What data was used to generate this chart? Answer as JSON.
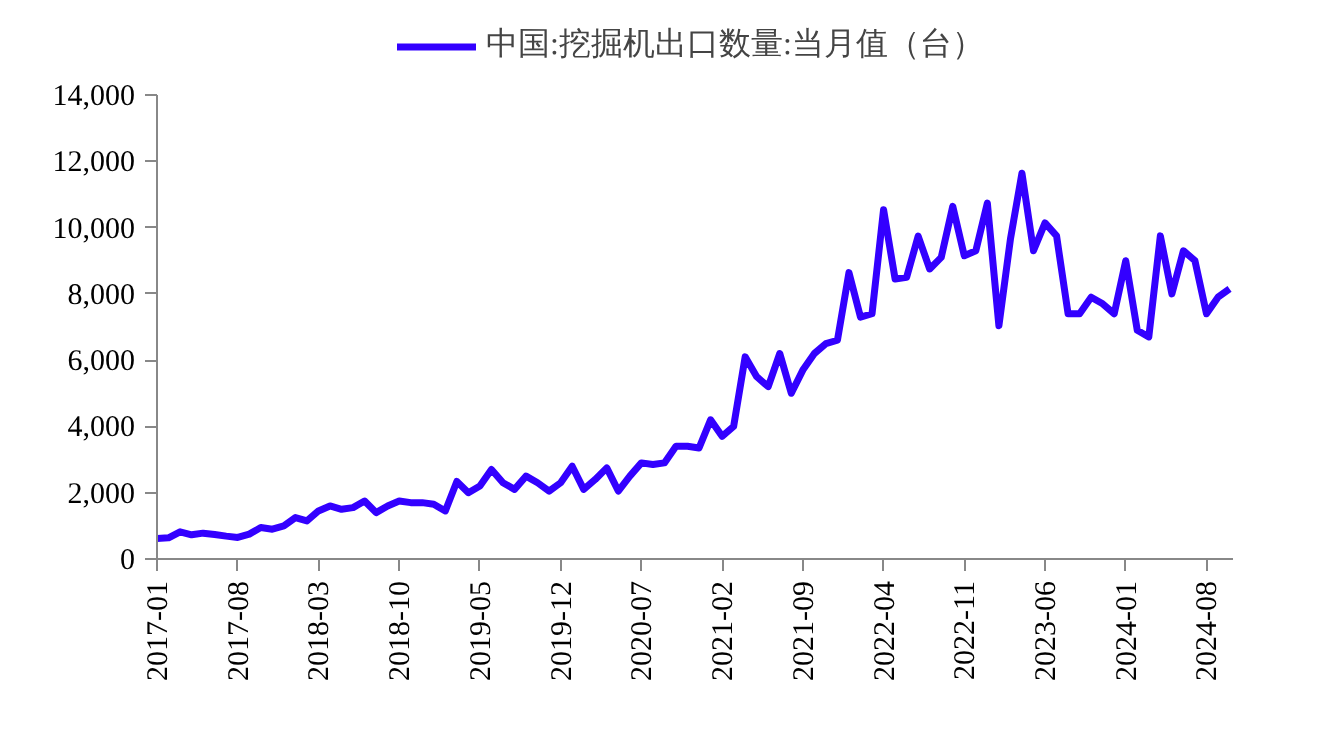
{
  "chart_data": {
    "type": "line",
    "legend": "top",
    "grid": false,
    "marker": "none",
    "line_style": "solid",
    "x": [
      "2017-01",
      "2017-02",
      "2017-03",
      "2017-04",
      "2017-05",
      "2017-06",
      "2017-07",
      "2017-08",
      "2017-09",
      "2017-10",
      "2017-11",
      "2017-12",
      "2018-01",
      "2018-02",
      "2018-03",
      "2018-04",
      "2018-05",
      "2018-06",
      "2018-07",
      "2018-08",
      "2018-09",
      "2018-10",
      "2018-11",
      "2018-12",
      "2019-01",
      "2019-02",
      "2019-03",
      "2019-04",
      "2019-05",
      "2019-06",
      "2019-07",
      "2019-08",
      "2019-09",
      "2019-10",
      "2019-11",
      "2019-12",
      "2020-01",
      "2020-02",
      "2020-03",
      "2020-04",
      "2020-05",
      "2020-06",
      "2020-07",
      "2020-08",
      "2020-09",
      "2020-10",
      "2020-11",
      "2020-12",
      "2021-01",
      "2021-02",
      "2021-03",
      "2021-04",
      "2021-05",
      "2021-06",
      "2021-07",
      "2021-08",
      "2021-09",
      "2021-10",
      "2021-11",
      "2021-12",
      "2022-01",
      "2022-02",
      "2022-03",
      "2022-04",
      "2022-05",
      "2022-06",
      "2022-07",
      "2022-08",
      "2022-09",
      "2022-10",
      "2022-11",
      "2022-12",
      "2023-01",
      "2023-02",
      "2023-03",
      "2023-04",
      "2023-05",
      "2023-06",
      "2023-07",
      "2023-08",
      "2023-09",
      "2023-10",
      "2023-11",
      "2023-12",
      "2024-01",
      "2024-02",
      "2024-03",
      "2024-04",
      "2024-05",
      "2024-06",
      "2024-07",
      "2024-08",
      "2024-09",
      "2024-10"
    ],
    "xlim": [
      "2017-01",
      "2024-10"
    ],
    "xticks": [
      "2017-01",
      "2017-08",
      "2018-03",
      "2018-10",
      "2019-05",
      "2019-12",
      "2020-07",
      "2021-02",
      "2021-09",
      "2022-04",
      "2022-11",
      "2023-06",
      "2024-01",
      "2024-08"
    ],
    "ylim": [
      0,
      14000
    ],
    "yticks": [
      0,
      {
        "value": 2000,
        "label": "2,000"
      },
      {
        "value": 4000,
        "label": "4,000"
      },
      {
        "value": 6000,
        "label": "6,000"
      },
      {
        "value": 8000,
        "label": "8,000"
      },
      {
        "value": 10000,
        "label": "10,000"
      },
      {
        "value": 12000,
        "label": "12,000"
      },
      {
        "value": 14000,
        "label": "14,000"
      }
    ],
    "series": [
      {
        "name": "中国:挖掘机出口数量:当月值（台）",
        "color": "#3300ff",
        "values": [
          620,
          640,
          820,
          730,
          780,
          740,
          690,
          650,
          750,
          950,
          900,
          1000,
          1250,
          1150,
          1450,
          1600,
          1500,
          1550,
          1750,
          1400,
          1600,
          1750,
          1700,
          1700,
          1650,
          1450,
          2340,
          2000,
          2200,
          2700,
          2300,
          2100,
          2500,
          2300,
          2050,
          2300,
          2800,
          2100,
          2400,
          2750,
          2050,
          2500,
          2900,
          2850,
          2900,
          3400,
          3400,
          3350,
          4200,
          3700,
          4000,
          6100,
          5500,
          5200,
          6200,
          5000,
          5700,
          6200,
          6500,
          6600,
          8640,
          7300,
          7400,
          10540,
          8450,
          8500,
          9740,
          8750,
          9100,
          10640,
          9150,
          9300,
          10740,
          7040,
          9650,
          11640,
          9300,
          10140,
          9750,
          7400,
          7400,
          7900,
          7700,
          7400,
          9000,
          6900,
          6700,
          9750,
          8000,
          9300,
          9000,
          7400,
          7900,
          8150
        ]
      }
    ]
  }
}
